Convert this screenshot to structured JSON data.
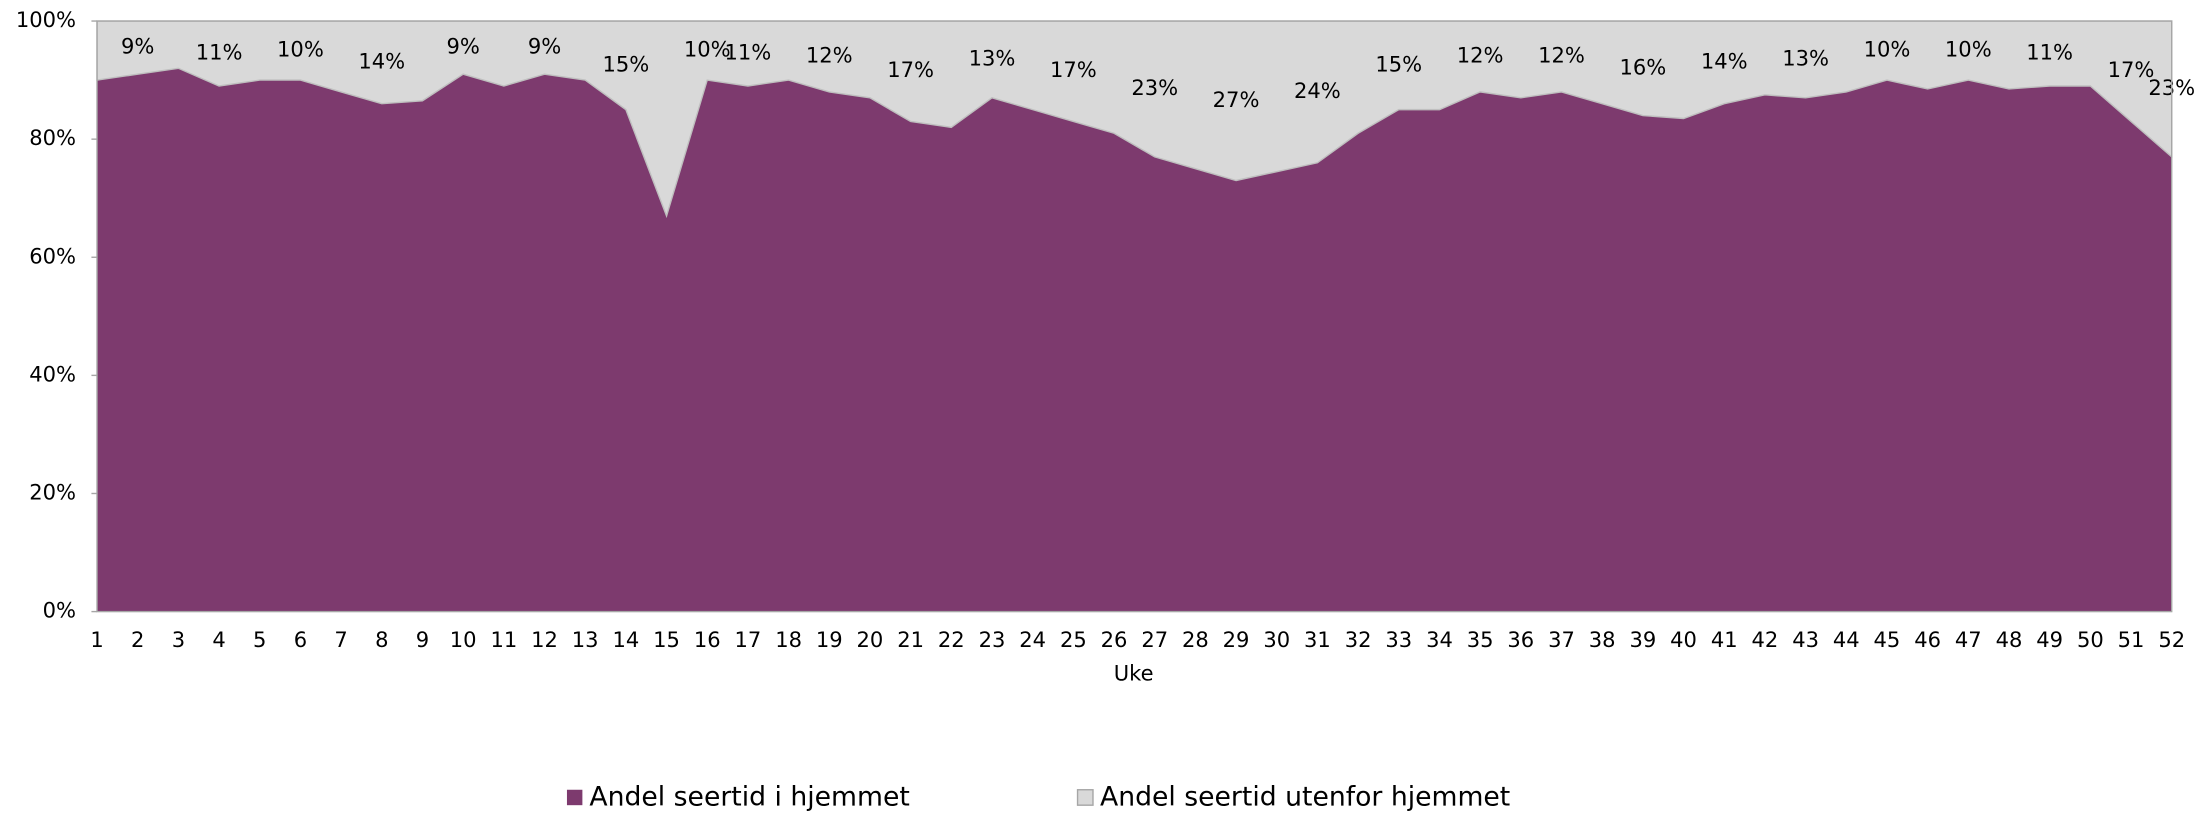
{
  "chart_data": {
    "type": "stacked_area",
    "x_label": "Uke",
    "categories": [
      1,
      2,
      3,
      4,
      5,
      6,
      7,
      8,
      9,
      10,
      11,
      12,
      13,
      14,
      15,
      16,
      17,
      18,
      19,
      20,
      21,
      22,
      23,
      24,
      25,
      26,
      27,
      28,
      29,
      30,
      31,
      32,
      33,
      34,
      35,
      36,
      37,
      38,
      39,
      40,
      41,
      42,
      43,
      44,
      45,
      46,
      47,
      48,
      49,
      50,
      51,
      52
    ],
    "series": [
      {
        "name": "Andel seertid i hjemmet",
        "color": "#7d3a6e",
        "values": [
          90,
          91,
          92,
          89,
          90,
          90,
          88,
          86,
          86.5,
          91,
          89,
          91,
          90,
          85,
          67,
          90,
          89,
          90,
          88,
          87,
          83,
          82,
          87,
          85,
          83,
          81,
          77,
          75,
          73,
          74.5,
          76,
          81,
          85,
          85,
          88,
          87,
          88,
          86,
          84,
          83.5,
          86,
          87.5,
          87,
          88,
          90,
          88.5,
          90,
          88.5,
          89,
          89,
          83,
          77
        ]
      },
      {
        "name": "Andel seertid utenfor hjemmet",
        "color": "#d9d9d9",
        "values": [
          10,
          9,
          8,
          11,
          10,
          10,
          12,
          14,
          13.5,
          9,
          11,
          9,
          10,
          15,
          33,
          10,
          11,
          10,
          12,
          13,
          17,
          18,
          13,
          15,
          17,
          19,
          23,
          25,
          27,
          25.5,
          24,
          19,
          15,
          15,
          12,
          13,
          12,
          14,
          16,
          16.5,
          14,
          12.5,
          13,
          12,
          10,
          11.5,
          10,
          11.5,
          11,
          11,
          17,
          23
        ],
        "value_labels": [
          null,
          "9%",
          null,
          "11%",
          null,
          "10%",
          null,
          "14%",
          null,
          "9%",
          null,
          "9%",
          null,
          "15%",
          null,
          "10%",
          "11%",
          null,
          "12%",
          null,
          "17%",
          null,
          "13%",
          null,
          "17%",
          null,
          "23%",
          null,
          "27%",
          null,
          "24%",
          null,
          "15%",
          null,
          "12%",
          null,
          "12%",
          null,
          "16%",
          null,
          "14%",
          null,
          "13%",
          null,
          "10%",
          null,
          "10%",
          null,
          "11%",
          null,
          "17%",
          "23%"
        ]
      }
    ],
    "ylim": [
      0,
      100
    ],
    "yticks": [
      {
        "value": 0,
        "label": "0%"
      },
      {
        "value": 20,
        "label": "20%"
      },
      {
        "value": 40,
        "label": "40%"
      },
      {
        "value": 60,
        "label": "60%"
      },
      {
        "value": 80,
        "label": "80%"
      },
      {
        "value": 100,
        "label": "100%"
      }
    ],
    "legend": "bottom"
  }
}
